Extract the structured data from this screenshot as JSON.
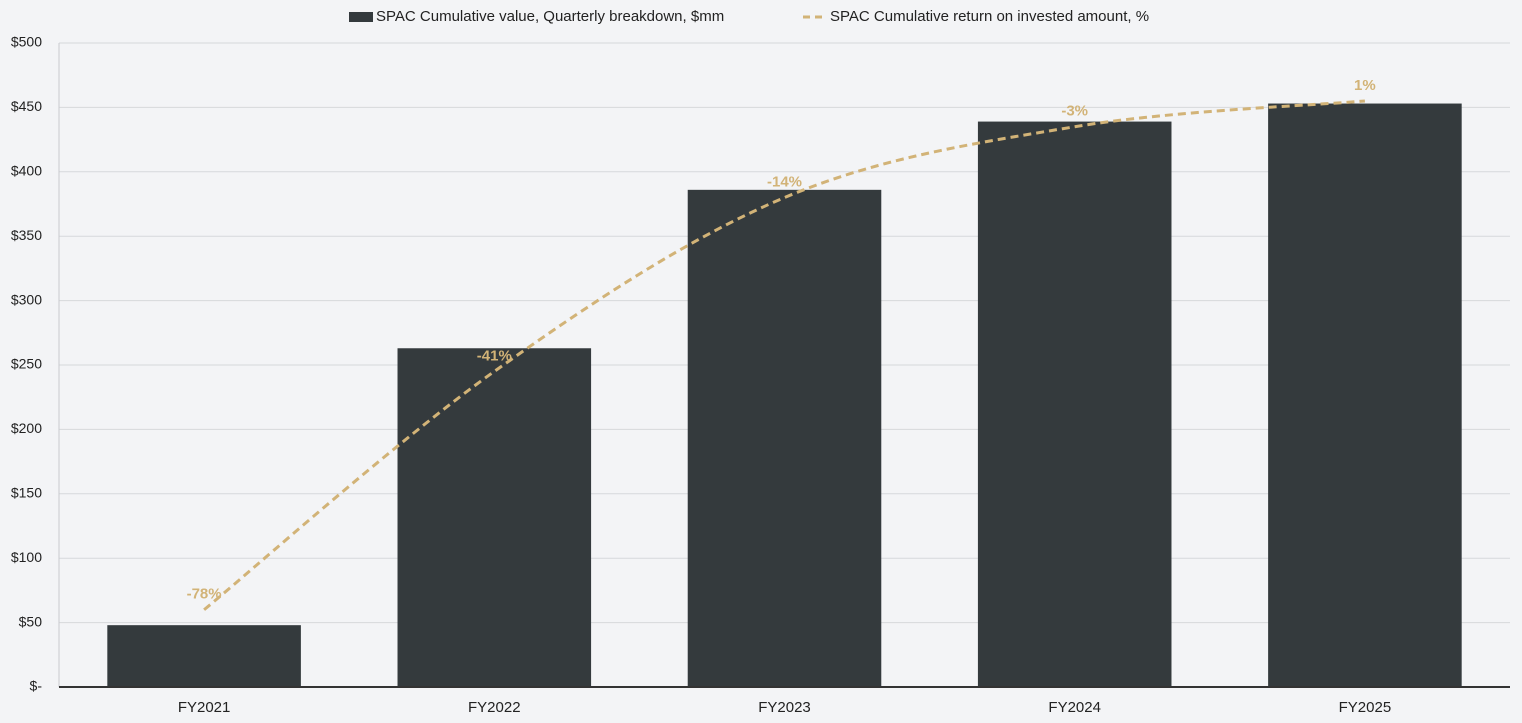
{
  "chart_data": {
    "type": "bar",
    "categories": [
      "FY2021",
      "FY2022",
      "FY2023",
      "FY2024",
      "FY2025"
    ],
    "series": [
      {
        "name": "SPAC Cumulative value, Quarterly breakdown, $mm",
        "type": "bar",
        "color": "#343a3d",
        "values": [
          48,
          263,
          386,
          439,
          453
        ]
      },
      {
        "name": "SPAC Cumulative return on invested amount, %",
        "type": "line",
        "axis": "y2",
        "color": "#d2b377",
        "dashed": true,
        "smooth": true,
        "values": [
          -78,
          -41,
          -14,
          -3,
          1
        ],
        "value_labels": [
          "-78%",
          "-41%",
          "-14%",
          "-3%",
          "1%"
        ]
      }
    ],
    "ylim": [
      0,
      500
    ],
    "yticks": [
      {
        "value": 0,
        "label": "$-"
      },
      {
        "value": 50,
        "label": "$50"
      },
      {
        "value": 100,
        "label": "$100"
      },
      {
        "value": 150,
        "label": "$150"
      },
      {
        "value": 200,
        "label": "$200"
      },
      {
        "value": 250,
        "label": "$250"
      },
      {
        "value": 300,
        "label": "$300"
      },
      {
        "value": 350,
        "label": "$350"
      },
      {
        "value": 400,
        "label": "$400"
      },
      {
        "value": 450,
        "label": "$450"
      },
      {
        "value": 500,
        "label": "$500"
      }
    ],
    "y2lim": [
      -90,
      10
    ],
    "grid": true,
    "legend": "top"
  }
}
